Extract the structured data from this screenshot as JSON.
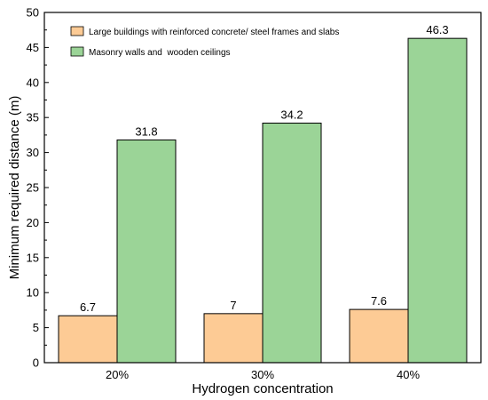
{
  "chart_data": {
    "type": "bar",
    "categories": [
      "20%",
      "30%",
      "40%"
    ],
    "series": [
      {
        "name": "Large buildings with reinforced concrete/ steel frames and slabs",
        "values": [
          6.7,
          7,
          7.6
        ],
        "value_labels": [
          "6.7",
          "7",
          "7.6"
        ],
        "color": "#fdcb95"
      },
      {
        "name": "Masonry walls and  wooden ceilings",
        "values": [
          31.8,
          34.2,
          46.3
        ],
        "value_labels": [
          "31.8",
          "34.2",
          "46.3"
        ],
        "color": "#9bd497"
      }
    ],
    "xlabel": "Hydrogen concentration",
    "ylabel": "Minimum required distance (m)",
    "ylim": [
      0,
      50
    ],
    "yticks": [
      0,
      5,
      10,
      15,
      20,
      25,
      30,
      35,
      40,
      45,
      50
    ],
    "grid": false,
    "legend_position": "top-left"
  }
}
